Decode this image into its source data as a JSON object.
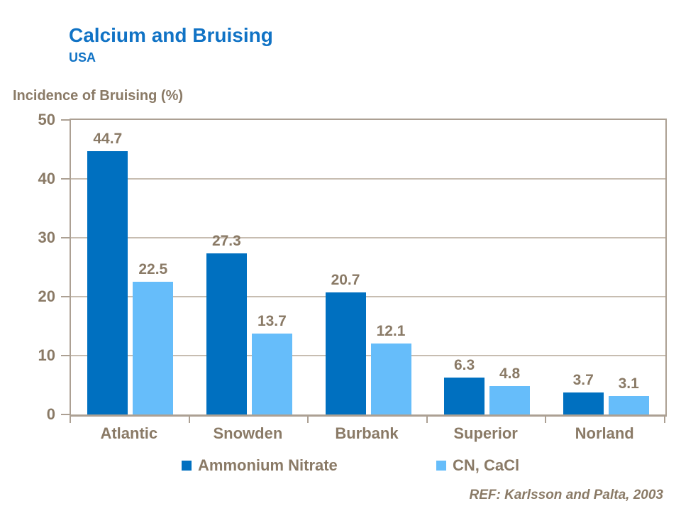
{
  "header": {
    "title": "Calcium and Bruising",
    "subtitle": "USA"
  },
  "chart_data": {
    "type": "bar",
    "title": "Calcium and Bruising",
    "subtitle": "USA",
    "ylabel": "Incidence of Bruising (%)",
    "xlabel": "",
    "categories": [
      "Atlantic",
      "Snowden",
      "Burbank",
      "Superior",
      "Norland"
    ],
    "series": [
      {
        "name": "Ammonium Nitrate",
        "color": "#0070C0",
        "values": [
          44.7,
          27.3,
          20.7,
          6.3,
          3.7
        ]
      },
      {
        "name": "CN, CaCl",
        "color": "#66BDFA",
        "values": [
          22.5,
          13.7,
          12.1,
          4.8,
          3.1
        ]
      }
    ],
    "ylim": [
      0,
      50
    ],
    "yticks": [
      0,
      10,
      20,
      30,
      40,
      50
    ],
    "grid": "horizontal",
    "legend_position": "bottom",
    "data_labels": true
  },
  "footer": {
    "reference": "REF: Karlsson and Palta, 2003"
  },
  "colors": {
    "title_blue": "#1173C5",
    "text_brown": "#8A7A66",
    "axis_border": "#ACA093",
    "gridline": "#C7BDB1",
    "series1": "#0070C0",
    "series2": "#66BDFA"
  }
}
